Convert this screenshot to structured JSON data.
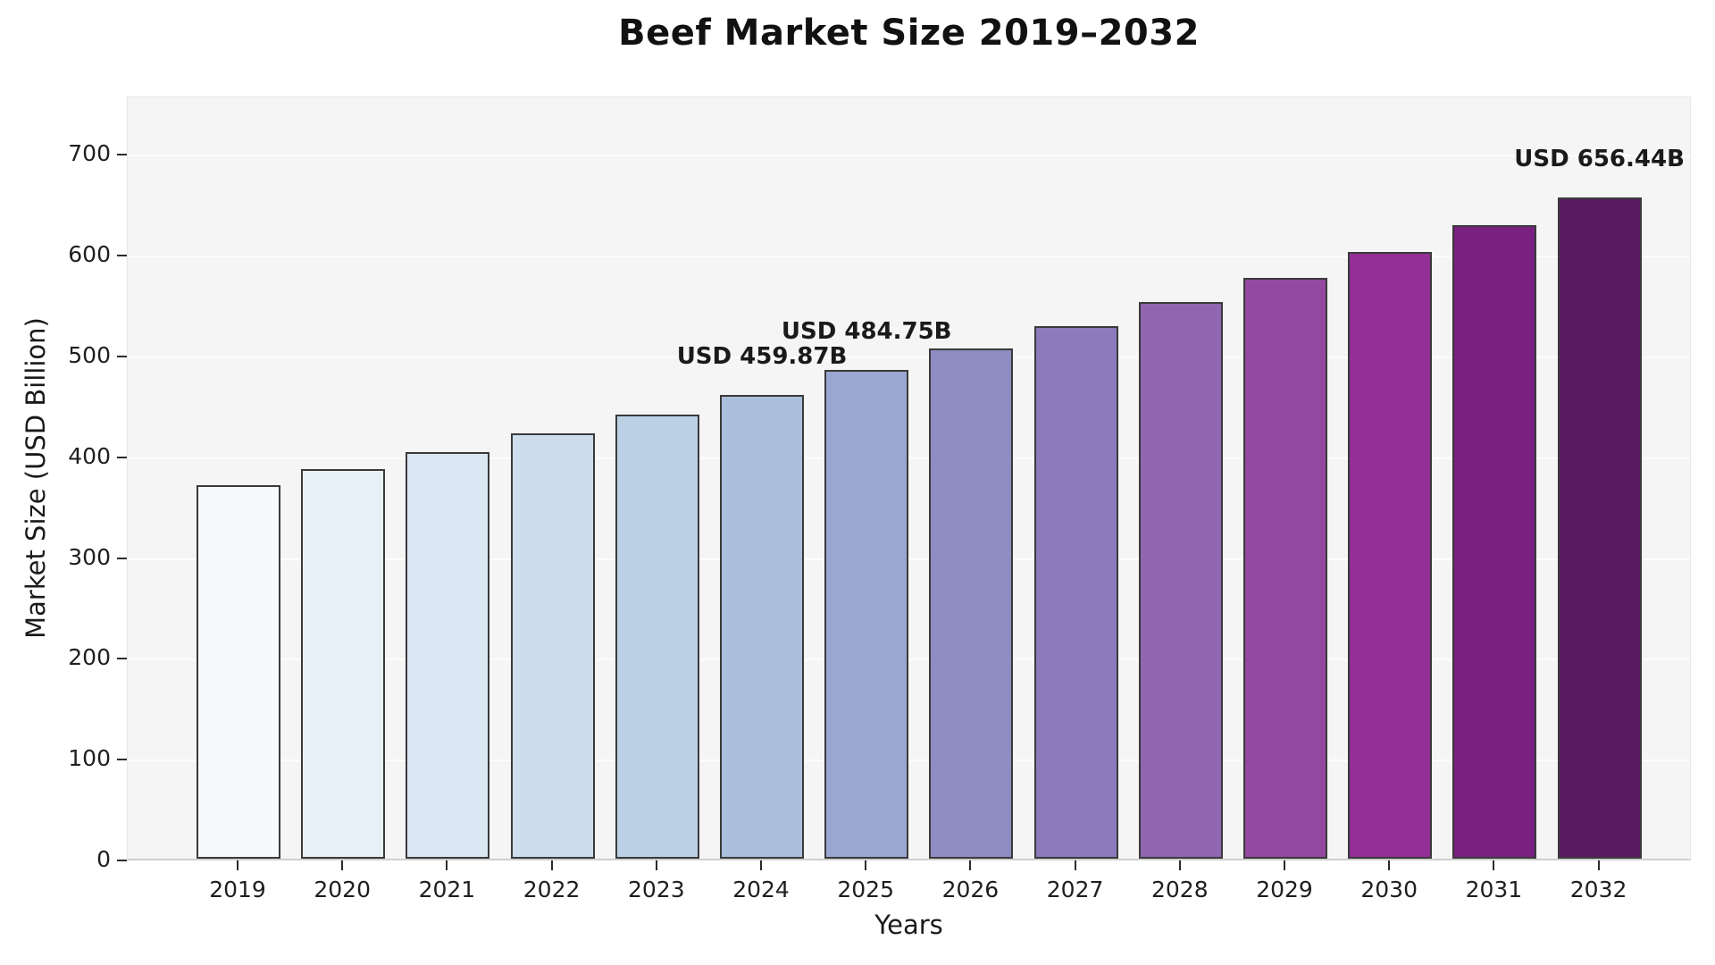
{
  "chart_data": {
    "type": "bar",
    "title": "Beef Market Size 2019–2032",
    "xlabel": "Years",
    "ylabel": "Market Size (USD Billion)",
    "categories": [
      "2019",
      "2020",
      "2021",
      "2022",
      "2023",
      "2024",
      "2025",
      "2026",
      "2027",
      "2028",
      "2029",
      "2030",
      "2031",
      "2032"
    ],
    "values": [
      370.3,
      386.7,
      403.8,
      421.7,
      440.4,
      459.87,
      484.75,
      506.2,
      528.6,
      552.0,
      576.5,
      602.0,
      628.6,
      656.44
    ],
    "bar_colors": [
      "#f6fafc",
      "#e8f0f7",
      "#dbe7f2",
      "#cdddec",
      "#bcd1e5",
      "#a9bfdc",
      "#99a7d1",
      "#8e8cc3",
      "#8d7abc",
      "#9166b1",
      "#9449a0",
      "#932f96",
      "#7a2080",
      "#5a1a60"
    ],
    "bar_edge_color": "#3a3a3a",
    "annotations": {
      "2024": "USD 459.87B",
      "2025": "USD 484.75B",
      "2032": "USD 656.44B"
    },
    "yticks": [
      0,
      100,
      200,
      300,
      400,
      500,
      600,
      700
    ],
    "ylim": [
      0,
      758
    ],
    "grid": true,
    "legend": "none",
    "plot_background": "#f5f5f6",
    "figure_background": "#ffffff",
    "grid_color": "#fdfdfd"
  }
}
